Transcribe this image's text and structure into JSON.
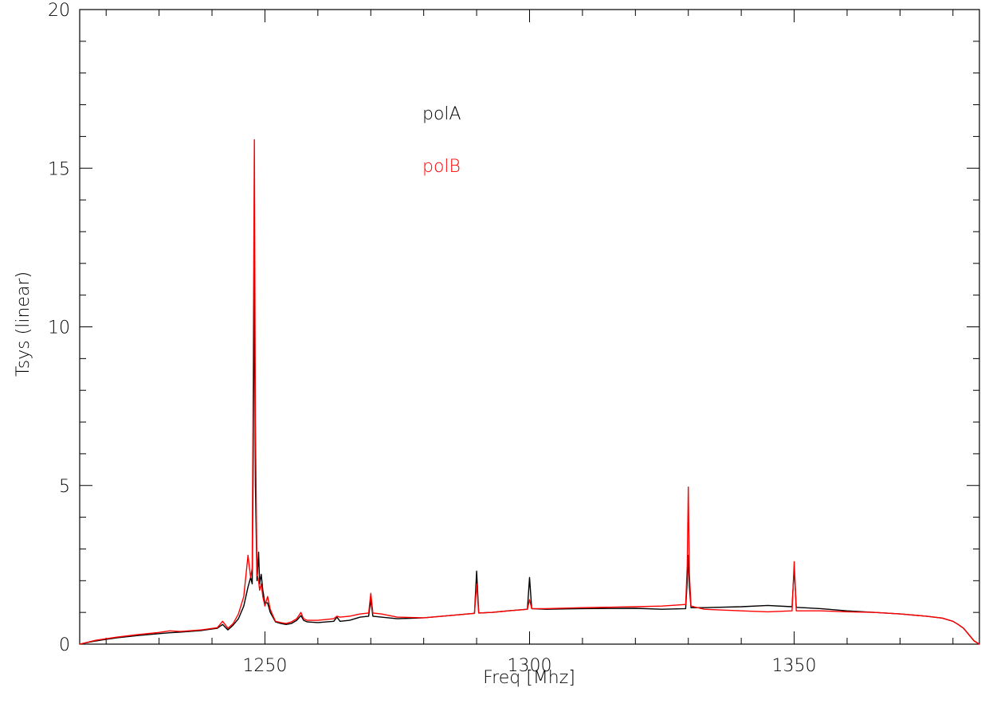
{
  "chart_data": {
    "type": "line",
    "title": "",
    "xlabel": "Freq [Mhz]",
    "ylabel": "Tsys (linear)",
    "xlim": [
      1215,
      1385
    ],
    "ylim": [
      0,
      20
    ],
    "x_ticks": [
      1250,
      1300,
      1350
    ],
    "y_ticks": [
      0,
      5,
      10,
      15,
      20
    ],
    "grid": false,
    "legend_placement": "top-center",
    "series": [
      {
        "name": "polA",
        "color": "#000000",
        "x": [
          1215,
          1218,
          1222,
          1226,
          1230,
          1232,
          1234,
          1238,
          1241,
          1242,
          1243,
          1244,
          1245,
          1246,
          1246.8,
          1247.3,
          1247.6,
          1247.8,
          1248.0,
          1248.2,
          1248.5,
          1248.8,
          1249.0,
          1249.3,
          1249.6,
          1250,
          1250.5,
          1251,
          1251.5,
          1252,
          1253,
          1254,
          1255,
          1256,
          1256.8,
          1257.3,
          1258,
          1260,
          1263,
          1263.6,
          1264.2,
          1266,
          1268,
          1269.6,
          1270.0,
          1270.4,
          1272,
          1275,
          1280,
          1285,
          1289.6,
          1290.0,
          1290.4,
          1293,
          1296,
          1299.6,
          1300.0,
          1300.4,
          1303,
          1310,
          1320,
          1325,
          1329.5,
          1329.8,
          1330.0,
          1330.2,
          1330.5,
          1333,
          1340,
          1345,
          1349.6,
          1350.0,
          1350.4,
          1355,
          1360,
          1365,
          1370,
          1375,
          1378,
          1380,
          1381,
          1382,
          1383,
          1384,
          1385
        ],
        "values": [
          0,
          0.1,
          0.2,
          0.27,
          0.33,
          0.36,
          0.38,
          0.43,
          0.5,
          0.62,
          0.45,
          0.6,
          0.8,
          1.2,
          1.8,
          2.1,
          1.9,
          6.0,
          11.9,
          5.0,
          2.0,
          2.9,
          1.9,
          2.2,
          1.7,
          1.3,
          1.3,
          1.0,
          0.85,
          0.7,
          0.65,
          0.62,
          0.65,
          0.75,
          0.9,
          0.75,
          0.7,
          0.68,
          0.72,
          0.85,
          0.72,
          0.75,
          0.85,
          0.88,
          1.4,
          0.88,
          0.85,
          0.8,
          0.83,
          0.9,
          0.97,
          2.3,
          0.98,
          1.0,
          1.05,
          1.1,
          2.1,
          1.12,
          1.1,
          1.12,
          1.13,
          1.1,
          1.12,
          2.0,
          2.8,
          1.8,
          1.15,
          1.15,
          1.18,
          1.22,
          1.18,
          2.4,
          1.16,
          1.12,
          1.05,
          1.0,
          0.95,
          0.88,
          0.82,
          0.72,
          0.62,
          0.5,
          0.3,
          0.1,
          0
        ]
      },
      {
        "name": "polB",
        "color": "#ff0000",
        "x": [
          1215,
          1218,
          1222,
          1226,
          1230,
          1232,
          1234,
          1238,
          1241,
          1242,
          1243,
          1244,
          1245,
          1246,
          1246.8,
          1247.3,
          1247.6,
          1247.8,
          1248.0,
          1248.2,
          1248.5,
          1248.8,
          1249.0,
          1249.3,
          1249.6,
          1250,
          1250.5,
          1251,
          1251.5,
          1252,
          1253,
          1254,
          1255,
          1256,
          1256.8,
          1257.3,
          1258,
          1260,
          1263,
          1263.6,
          1264.2,
          1266,
          1268,
          1269.6,
          1270.0,
          1270.4,
          1272,
          1275,
          1280,
          1285,
          1289.6,
          1290.0,
          1290.4,
          1293,
          1296,
          1299.6,
          1300.0,
          1300.4,
          1303,
          1310,
          1320,
          1325,
          1329.5,
          1329.8,
          1330.0,
          1330.2,
          1330.5,
          1333,
          1340,
          1345,
          1349.6,
          1350.0,
          1350.4,
          1355,
          1360,
          1365,
          1370,
          1375,
          1378,
          1380,
          1381,
          1382,
          1383,
          1384,
          1385
        ],
        "values": [
          0,
          0.12,
          0.22,
          0.3,
          0.37,
          0.42,
          0.4,
          0.45,
          0.52,
          0.72,
          0.5,
          0.65,
          0.95,
          1.5,
          2.8,
          2.1,
          2.4,
          9.0,
          15.9,
          7.0,
          2.2,
          2.0,
          1.7,
          1.9,
          1.5,
          1.2,
          1.5,
          1.1,
          0.9,
          0.72,
          0.68,
          0.65,
          0.7,
          0.8,
          1.0,
          0.8,
          0.75,
          0.75,
          0.8,
          0.88,
          0.85,
          0.88,
          0.95,
          0.98,
          1.6,
          0.98,
          0.95,
          0.85,
          0.83,
          0.9,
          0.97,
          1.9,
          0.98,
          1.0,
          1.05,
          1.1,
          1.4,
          1.12,
          1.12,
          1.15,
          1.18,
          1.2,
          1.25,
          2.5,
          4.95,
          2.2,
          1.2,
          1.1,
          1.05,
          1.02,
          1.05,
          2.6,
          1.05,
          1.05,
          1.02,
          1.0,
          0.95,
          0.88,
          0.82,
          0.72,
          0.62,
          0.5,
          0.3,
          0.1,
          0
        ]
      }
    ]
  }
}
